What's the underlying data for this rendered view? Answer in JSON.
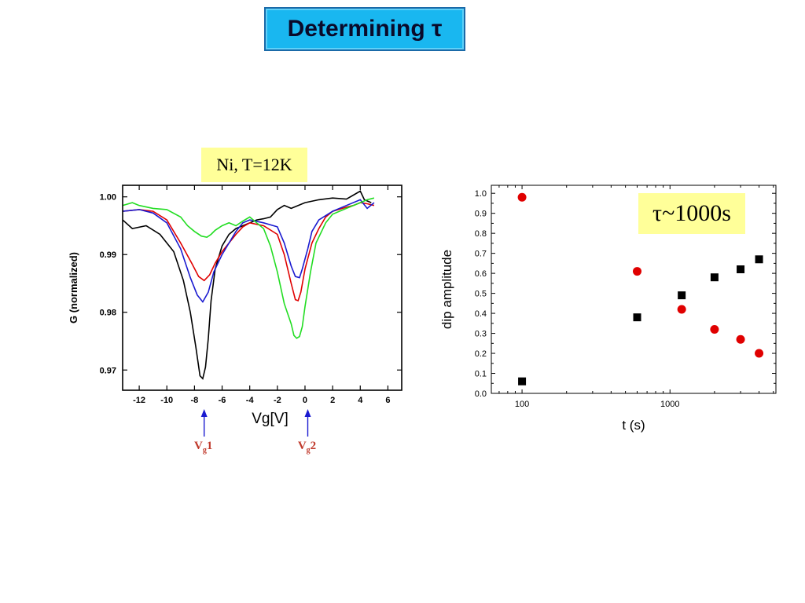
{
  "title": "Determining τ",
  "left_label": "Ni, T=12K",
  "right_label": "τ~1000s",
  "markers": [
    {
      "sub": "g",
      "num": "1",
      "x_value": -7.3
    },
    {
      "sub": "g",
      "num": "2",
      "x_value": 0.2
    }
  ],
  "colors": {
    "black": "#000000",
    "red": "#e00000",
    "blue": "#1a1ad0",
    "green": "#22dd22",
    "marker_arrow": "#1a1ad0",
    "marker_text": "#c0392b"
  },
  "chart_data": [
    {
      "type": "line",
      "xlabel": "Vg[V]",
      "ylabel": "G (normalized)",
      "xlim": [
        -13.2,
        7
      ],
      "ylim": [
        0.9665,
        1.002
      ],
      "xticks": [
        -12,
        -10,
        -8,
        -6,
        -4,
        -2,
        0,
        2,
        4,
        6
      ],
      "yticks": [
        0.97,
        0.98,
        0.99,
        1.0
      ],
      "ytick_labels": [
        "0.97",
        "0.98",
        "0.99",
        "1.00"
      ],
      "series": [
        {
          "color": "black",
          "x": [
            -13.2,
            -12.5,
            -11.5,
            -10.5,
            -9.5,
            -8.8,
            -8.3,
            -7.9,
            -7.6,
            -7.4,
            -7.2,
            -7.0,
            -6.8,
            -6.5,
            -6.0,
            -5.5,
            -5.0,
            -4.5,
            -4.0,
            -3.5,
            -3.0,
            -2.5,
            -2.0,
            -1.5,
            -1.0,
            0.0,
            1.0,
            2.0,
            3.0,
            3.5,
            4.0,
            4.3,
            4.8
          ],
          "y": [
            0.996,
            0.9945,
            0.995,
            0.9935,
            0.9905,
            0.9855,
            0.98,
            0.974,
            0.969,
            0.9685,
            0.9705,
            0.9755,
            0.982,
            0.9875,
            0.9915,
            0.9935,
            0.9945,
            0.995,
            0.9955,
            0.996,
            0.9962,
            0.9965,
            0.9978,
            0.9985,
            0.998,
            0.999,
            0.9995,
            0.9998,
            0.9996,
            1.0003,
            1.001,
            0.9995,
            0.999
          ]
        },
        {
          "color": "red",
          "x": [
            -13.2,
            -12.0,
            -11.0,
            -10.0,
            -9.0,
            -8.2,
            -7.7,
            -7.3,
            -6.9,
            -6.5,
            -6.0,
            -5.5,
            -5.0,
            -4.5,
            -4.0,
            -3.0,
            -2.0,
            -1.5,
            -1.0,
            -0.7,
            -0.5,
            -0.3,
            0.0,
            0.5,
            1.0,
            1.5,
            2.0,
            3.0,
            3.5,
            4.0,
            4.5,
            5.0
          ],
          "y": [
            0.9975,
            0.9978,
            0.9975,
            0.996,
            0.992,
            0.9885,
            0.9862,
            0.9855,
            0.9865,
            0.9885,
            0.9905,
            0.992,
            0.9935,
            0.9948,
            0.9955,
            0.995,
            0.9935,
            0.99,
            0.985,
            0.9822,
            0.982,
            0.9835,
            0.9875,
            0.992,
            0.9945,
            0.9965,
            0.9975,
            0.9982,
            0.9985,
            0.999,
            0.9988,
            0.9985
          ]
        },
        {
          "color": "blue",
          "x": [
            -13.2,
            -12.0,
            -11.0,
            -10.0,
            -9.0,
            -8.3,
            -7.8,
            -7.4,
            -7.0,
            -6.6,
            -6.0,
            -5.5,
            -5.0,
            -4.5,
            -4.0,
            -3.0,
            -2.0,
            -1.5,
            -1.0,
            -0.7,
            -0.4,
            -0.2,
            0.2,
            0.5,
            1.0,
            2.0,
            3.0,
            4.0,
            4.5,
            5.0
          ],
          "y": [
            0.9975,
            0.9978,
            0.9972,
            0.9955,
            0.991,
            0.986,
            0.983,
            0.9818,
            0.9835,
            0.987,
            0.99,
            0.992,
            0.994,
            0.9955,
            0.996,
            0.9955,
            0.9948,
            0.992,
            0.988,
            0.9862,
            0.986,
            0.9875,
            0.991,
            0.994,
            0.996,
            0.9975,
            0.9985,
            0.9995,
            0.998,
            0.999
          ]
        },
        {
          "color": "green",
          "x": [
            -13.2,
            -12.5,
            -12.0,
            -11.0,
            -10.0,
            -9.0,
            -8.5,
            -8.0,
            -7.5,
            -7.1,
            -6.8,
            -6.5,
            -6.0,
            -5.5,
            -5.0,
            -4.5,
            -4.0,
            -3.5,
            -3.0,
            -2.5,
            -2.0,
            -1.5,
            -1.0,
            -0.8,
            -0.6,
            -0.4,
            -0.2,
            0.0,
            0.4,
            0.8,
            1.5,
            2.0,
            3.0,
            4.0,
            4.5,
            5.0
          ],
          "y": [
            0.9985,
            0.999,
            0.9985,
            0.998,
            0.9978,
            0.9965,
            0.995,
            0.994,
            0.9932,
            0.993,
            0.9935,
            0.9942,
            0.995,
            0.9955,
            0.995,
            0.9958,
            0.9965,
            0.9955,
            0.9945,
            0.9915,
            0.987,
            0.9815,
            0.978,
            0.976,
            0.9755,
            0.9758,
            0.9775,
            0.981,
            0.987,
            0.992,
            0.9955,
            0.997,
            0.998,
            0.999,
            0.9995,
            0.9998
          ]
        }
      ]
    },
    {
      "type": "scatter",
      "xlabel": "t (s)",
      "ylabel": "dip amplitude",
      "xscale": "log",
      "xlim": [
        62,
        5200
      ],
      "ylim": [
        0.0,
        1.04
      ],
      "xticks": [
        100,
        1000
      ],
      "xtick_labels": [
        "100",
        "1000"
      ],
      "yticks": [
        0.0,
        0.1,
        0.2,
        0.3,
        0.4,
        0.5,
        0.6,
        0.7,
        0.8,
        0.9,
        1.0
      ],
      "ytick_labels": [
        "0.0",
        "0.1",
        "0.2",
        "0.3",
        "0.4",
        "0.5",
        "0.6",
        "0.7",
        "0.8",
        "0.9",
        "1.0"
      ],
      "series": [
        {
          "marker": "square",
          "color": "black",
          "x": [
            100,
            600,
            1200,
            2000,
            3000,
            4000
          ],
          "y": [
            0.06,
            0.38,
            0.49,
            0.58,
            0.62,
            0.67
          ]
        },
        {
          "marker": "circle",
          "color": "red",
          "x": [
            100,
            600,
            1200,
            2000,
            3000,
            4000
          ],
          "y": [
            0.98,
            0.61,
            0.42,
            0.32,
            0.27,
            0.2
          ]
        }
      ]
    }
  ]
}
